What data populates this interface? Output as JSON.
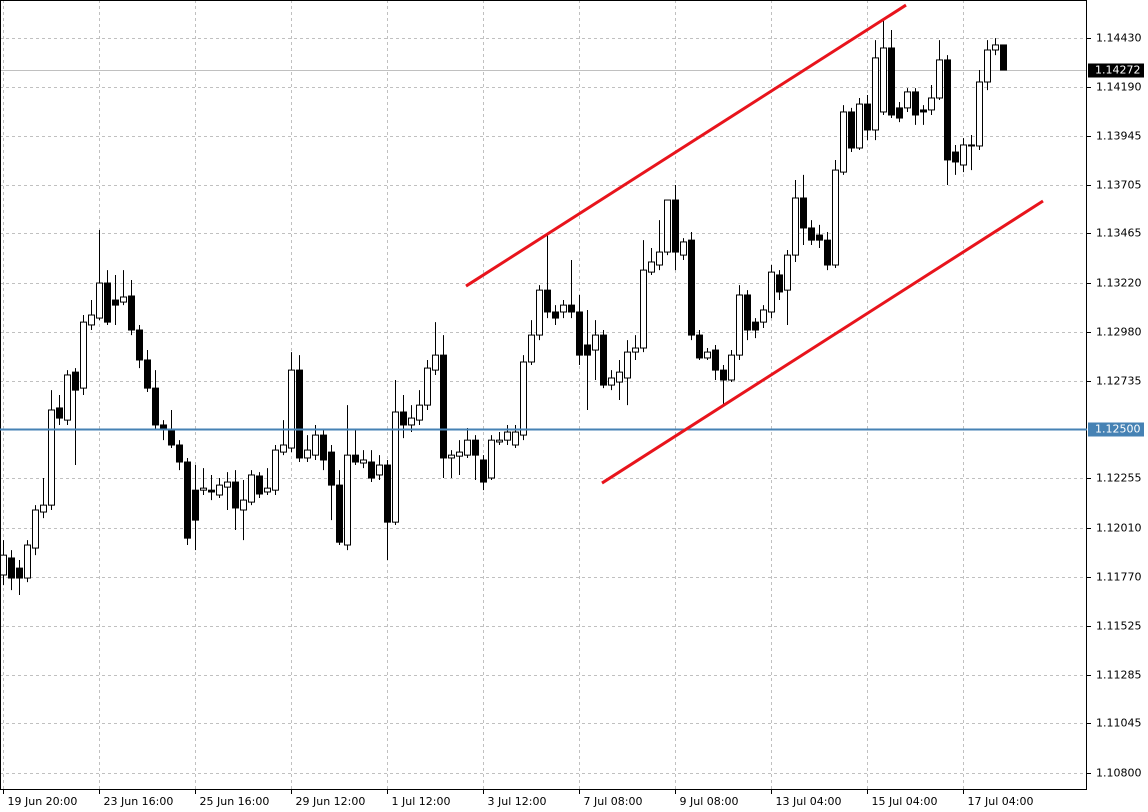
{
  "chart_data": {
    "type": "candlestick",
    "up_color": "#ffffff",
    "down_color": "#000000",
    "grid": true,
    "categories": [
      "19 Jun 20:00",
      null,
      null,
      null,
      null,
      null,
      null,
      null,
      null,
      null,
      null,
      null,
      "23 Jun 16:00",
      null,
      null,
      null,
      null,
      null,
      null,
      null,
      null,
      null,
      null,
      null,
      "25 Jun 16:00",
      null,
      null,
      null,
      null,
      null,
      null,
      null,
      null,
      null,
      null,
      null,
      "29 Jun 12:00",
      null,
      null,
      null,
      null,
      null,
      null,
      null,
      null,
      null,
      null,
      null,
      "1 Jul 12:00",
      null,
      null,
      null,
      null,
      null,
      null,
      null,
      null,
      null,
      null,
      null,
      "3 Jul 12:00",
      null,
      null,
      null,
      null,
      null,
      null,
      null,
      null,
      null,
      null,
      null,
      "7 Jul 08:00",
      null,
      null,
      null,
      null,
      null,
      null,
      null,
      null,
      null,
      null,
      null,
      "9 Jul 08:00",
      null,
      null,
      null,
      null,
      null,
      null,
      null,
      null,
      null,
      null,
      null,
      "13 Jul 04:00",
      null,
      null,
      null,
      null,
      null,
      null,
      null,
      null,
      null,
      null,
      null,
      "15 Jul 04:00",
      null,
      null,
      null,
      null,
      null,
      null,
      null,
      null,
      null,
      null,
      null,
      "17 Jul 04:00",
      null,
      null,
      null,
      null,
      null
    ],
    "open": [
      1.11778,
      1.11862,
      1.11812,
      1.11763,
      1.11911,
      1.12089,
      1.12123,
      1.12603,
      1.12543,
      1.1278,
      1.12701,
      1.13013,
      1.13047,
      1.1322,
      1.13136,
      1.13126,
      1.13156,
      1.12988,
      1.1284,
      1.12701,
      1.12519,
      1.12494,
      1.1242,
      1.12336,
      1.12197,
      1.12197,
      1.12197,
      1.12173,
      1.12212,
      1.12237,
      1.12099,
      1.12138,
      1.12267,
      1.12188,
      1.12197,
      1.12385,
      1.12405,
      1.1279,
      1.12356,
      1.1237,
      1.12469,
      1.12385,
      1.12222,
      1.11926,
      1.1237,
      1.12331,
      1.12336,
      1.12272,
      1.12321,
      1.12039,
      1.12583,
      1.12519,
      1.12543,
      1.12617,
      1.1279,
      1.12864,
      1.12356,
      1.12365,
      1.1237,
      1.12444,
      1.12346,
      1.12257,
      1.12435,
      1.12444,
      1.1242,
      1.12469,
      1.1283,
      1.12963,
      1.13185,
      1.13077,
      1.13077,
      1.13111,
      1.13077,
      1.12914,
      1.12889,
      1.12963,
      1.12716,
      1.12731,
      1.12751,
      1.12879,
      1.12899,
      1.13274,
      1.13309,
      1.13373,
      1.1363,
      1.13358,
      1.13432,
      1.12963,
      1.1285,
      1.12889,
      1.1279,
      1.12741,
      1.12864,
      1.13161,
      1.13027,
      1.13027,
      1.13077,
      1.1326,
      1.13185,
      1.13358,
      1.1364,
      1.13492,
      1.13457,
      1.13432,
      1.13309,
      1.13768,
      1.14065,
      1.13887,
      1.14104,
      1.13976,
      1.14065,
      1.14381,
      1.14085,
      1.14085,
      1.14164,
      1.14075,
      1.14075,
      1.14134,
      1.14322,
      1.13867,
      1.13803,
      1.13902,
      1.13897,
      1.14213,
      1.14371,
      1.14396
    ],
    "high": [
      1.1195,
      1.11901,
      1.11852,
      1.1195,
      1.12123,
      1.12257,
      1.12691,
      1.12667,
      1.1279,
      1.128,
      1.13062,
      1.13136,
      1.13482,
      1.13284,
      1.1326,
      1.13284,
      1.13235,
      1.13013,
      1.12889,
      1.1279,
      1.12543,
      1.12593,
      1.12444,
      1.12356,
      1.12321,
      1.12306,
      1.12272,
      1.12257,
      1.12286,
      1.12296,
      1.12247,
      1.12296,
      1.12286,
      1.12306,
      1.1242,
      1.12543,
      1.12879,
      1.12864,
      1.12469,
      1.12519,
      1.12494,
      1.1242,
      1.12296,
      1.12617,
      1.12494,
      1.12395,
      1.12395,
      1.1237,
      1.12346,
      1.12741,
      1.12667,
      1.12617,
      1.12691,
      1.1284,
      1.13027,
      1.12963,
      1.12395,
      1.12444,
      1.12504,
      1.12469,
      1.1237,
      1.12469,
      1.12484,
      1.12519,
      1.12519,
      1.12864,
      1.13037,
      1.1321,
      1.13457,
      1.13111,
      1.13136,
      1.13334,
      1.13161,
      1.13087,
      1.13037,
      1.12988,
      1.1279,
      1.1284,
      1.12938,
      1.12963,
      1.13432,
      1.13393,
      1.13531,
      1.1363,
      1.13704,
      1.13442,
      1.13472,
      1.12988,
      1.12899,
      1.12914,
      1.12815,
      1.12889,
      1.1321,
      1.13185,
      1.13047,
      1.13111,
      1.13309,
      1.13284,
      1.13383,
      1.13729,
      1.13754,
      1.13531,
      1.13507,
      1.13472,
      1.13828,
      1.14099,
      1.14085,
      1.14134,
      1.14149,
      1.1442,
      1.14529,
      1.1447,
      1.14114,
      1.14183,
      1.14183,
      1.14099,
      1.14198,
      1.1442,
      1.14346,
      1.13902,
      1.13936,
      1.13951,
      1.14272,
      1.1442,
      1.1443,
      1.14396
    ],
    "low": [
      1.11728,
      1.11703,
      1.11679,
      1.11743,
      1.11876,
      1.12059,
      1.12099,
      1.12519,
      1.12519,
      1.12321,
      1.12667,
      1.12988,
      1.13037,
      1.13013,
      1.13013,
      1.13111,
      1.12963,
      1.128,
      1.12682,
      1.12494,
      1.12444,
      1.12405,
      1.12296,
      1.11926,
      1.11901,
      1.12173,
      1.12148,
      1.12158,
      1.12099,
      1.12,
      1.1195,
      1.12123,
      1.12158,
      1.12173,
      1.12173,
      1.1237,
      1.12385,
      1.12336,
      1.12336,
      1.12346,
      1.12296,
      1.12049,
      1.11926,
      1.11901,
      1.12321,
      1.12306,
      1.12237,
      1.12247,
      1.11852,
      1.12025,
      1.12454,
      1.12484,
      1.12519,
      1.12593,
      1.12766,
      1.12257,
      1.12257,
      1.12272,
      1.12356,
      1.12247,
      1.12197,
      1.12247,
      1.1242,
      1.1242,
      1.12405,
      1.12444,
      1.12815,
      1.12938,
      1.13047,
      1.13013,
      1.13047,
      1.13047,
      1.12815,
      1.12593,
      1.12741,
      1.12701,
      1.12691,
      1.12642,
      1.12617,
      1.1284,
      1.12879,
      1.1326,
      1.13284,
      1.13358,
      1.13284,
      1.13334,
      1.12938,
      1.1284,
      1.1284,
      1.12741,
      1.12617,
      1.12731,
      1.1284,
      1.12938,
      1.12948,
      1.12998,
      1.13047,
      1.13136,
      1.13013,
      1.13324,
      1.13408,
      1.13408,
      1.13393,
      1.13284,
      1.13294,
      1.13754,
      1.13867,
      1.13877,
      1.13926,
      1.13926,
      1.1405,
      1.14035,
      1.14015,
      1.14065,
      1.14001,
      1.14001,
      1.1405,
      1.14124,
      1.13704,
      1.13754,
      1.13768,
      1.13778,
      1.13877,
      1.14173,
      1.14346,
      1.14272
    ],
    "close": [
      1.11876,
      1.11763,
      1.11763,
      1.11926,
      1.12099,
      1.12123,
      1.12593,
      1.12553,
      1.12766,
      1.12691,
      1.13027,
      1.13062,
      1.1322,
      1.13027,
      1.13111,
      1.13151,
      1.12988,
      1.1284,
      1.12701,
      1.12519,
      1.12504,
      1.1242,
      1.12336,
      1.1196,
      1.12049,
      1.12207,
      1.12188,
      1.12222,
      1.12237,
      1.12109,
      1.12148,
      1.12272,
      1.12178,
      1.12207,
      1.12395,
      1.1242,
      1.1279,
      1.12356,
      1.12395,
      1.12469,
      1.12346,
      1.12222,
      1.1194,
      1.1237,
      1.12336,
      1.12346,
      1.12257,
      1.12321,
      1.12039,
      1.12583,
      1.12519,
      1.12553,
      1.12617,
      1.128,
      1.12864,
      1.12356,
      1.1237,
      1.12385,
      1.12444,
      1.1237,
      1.12237,
      1.12444,
      1.12444,
      1.12484,
      1.12484,
      1.1283,
      1.12963,
      1.13185,
      1.13077,
      1.13047,
      1.13111,
      1.13077,
      1.12864,
      1.12864,
      1.12963,
      1.12716,
      1.12751,
      1.1278,
      1.12879,
      1.12899,
      1.13284,
      1.13324,
      1.13373,
      1.1363,
      1.13373,
      1.13423,
      1.12963,
      1.1285,
      1.12879,
      1.1279,
      1.12741,
      1.12864,
      1.13161,
      1.12988,
      1.12988,
      1.13087,
      1.13274,
      1.13176,
      1.13358,
      1.1364,
      1.13492,
      1.13432,
      1.13432,
      1.13309,
      1.13778,
      1.14065,
      1.13887,
      1.14104,
      1.13976,
      1.14332,
      1.14381,
      1.1405,
      1.14035,
      1.14164,
      1.1405,
      1.14065,
      1.14134,
      1.14322,
      1.13828,
      1.13818,
      1.13902,
      1.13897,
      1.14213,
      1.14371,
      1.14396,
      1.14272
    ],
    "ylim": [
      1.10716,
      1.14618
    ],
    "yticks": [
      {
        "value": 1.1443,
        "label": "1.14430"
      },
      {
        "value": 1.1419,
        "label": "1.14190"
      },
      {
        "value": 1.13945,
        "label": "1.13945"
      },
      {
        "value": 1.13705,
        "label": "1.13705"
      },
      {
        "value": 1.13465,
        "label": "1.13465"
      },
      {
        "value": 1.1322,
        "label": "1.13220"
      },
      {
        "value": 1.1298,
        "label": "1.12980"
      },
      {
        "value": 1.12735,
        "label": "1.12735"
      },
      {
        "value": 1.12255,
        "label": "1.12255"
      },
      {
        "value": 1.1201,
        "label": "1.12010"
      },
      {
        "value": 1.1177,
        "label": "1.11770"
      },
      {
        "value": 1.11525,
        "label": "1.11525"
      },
      {
        "value": 1.11285,
        "label": "1.11285"
      },
      {
        "value": 1.11045,
        "label": "1.11045"
      },
      {
        "value": 1.108,
        "label": "1.10800"
      }
    ],
    "level_line": {
      "value": 1.125,
      "label": "1.12500",
      "color": "#4682b4"
    },
    "current_price": {
      "value": 1.14272,
      "label": "1.14272",
      "color": "#000000"
    },
    "trendlines": [
      {
        "color": "#e8141c",
        "prices": [
          1.13205,
          1.14593
        ]
      },
      {
        "color": "#e8141c",
        "prices": [
          1.12232,
          1.13625
        ]
      }
    ]
  }
}
